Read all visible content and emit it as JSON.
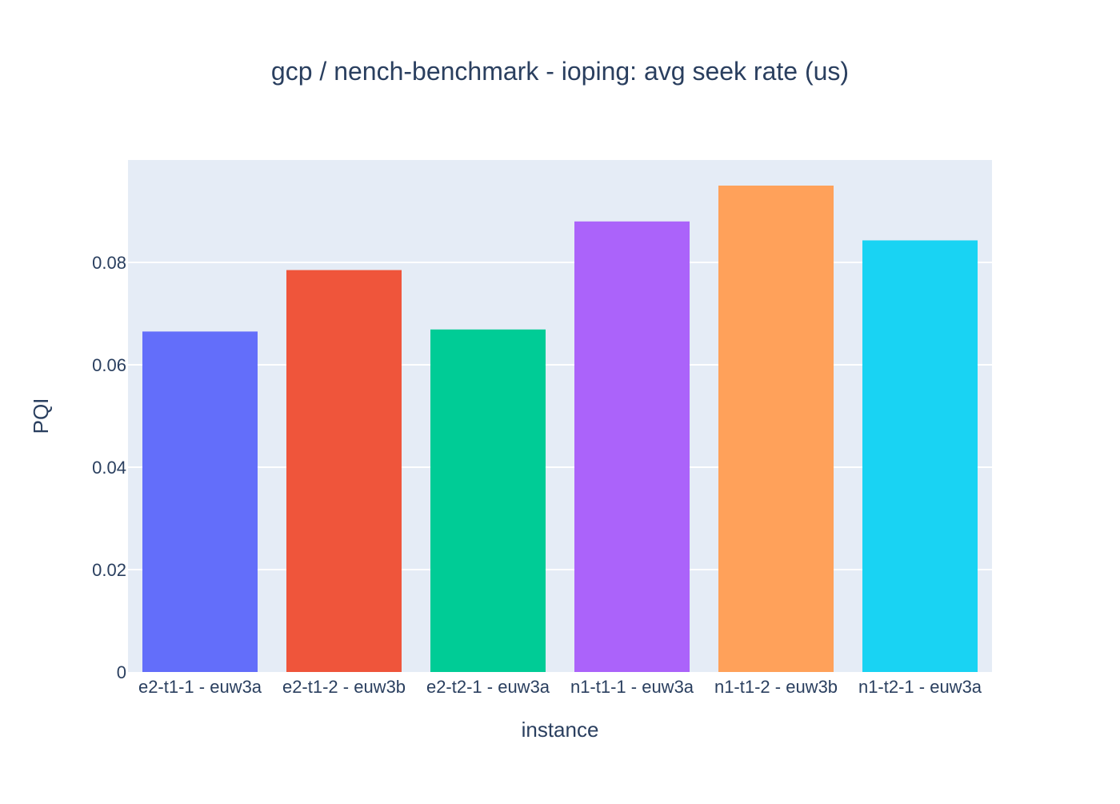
{
  "chart_data": {
    "type": "bar",
    "title": "gcp / nench-benchmark - ioping: avg seek rate (us)",
    "xlabel": "instance",
    "ylabel": "PQI",
    "categories": [
      "e2-t1-1 - euw3a",
      "e2-t1-2 - euw3b",
      "e2-t2-1 - euw3a",
      "n1-t1-1 - euw3a",
      "n1-t1-2 - euw3b",
      "n1-t2-1 - euw3a"
    ],
    "values": [
      0.0665,
      0.0785,
      0.0669,
      0.088,
      0.095,
      0.0843
    ],
    "colors": [
      "#636efa",
      "#ef553b",
      "#00cc96",
      "#ab63fa",
      "#ffa15a",
      "#19d3f3"
    ],
    "ylim": [
      0,
      0.1
    ],
    "yticks": [
      0,
      0.02,
      0.04,
      0.06,
      0.08
    ],
    "ytick_labels": [
      "0",
      "0.02",
      "0.04",
      "0.06",
      "0.08"
    ],
    "grid": true,
    "plot_background": "#e5ecf6",
    "text_color": "#2a3f5f"
  }
}
